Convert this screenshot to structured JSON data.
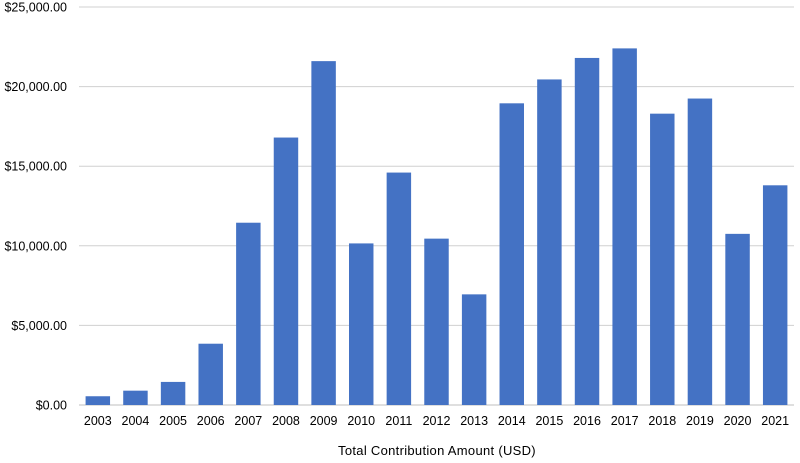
{
  "chart_data": {
    "type": "bar",
    "title": "",
    "xlabel": "Total Contribution Amount (USD)",
    "ylabel": "",
    "categories": [
      "2003",
      "2004",
      "2005",
      "2006",
      "2007",
      "2008",
      "2009",
      "2010",
      "2011",
      "2012",
      "2013",
      "2014",
      "2015",
      "2016",
      "2017",
      "2018",
      "2019",
      "2020",
      "2021"
    ],
    "values": [
      550,
      900,
      1450,
      3850,
      11450,
      16800,
      21600,
      10150,
      14600,
      10450,
      6950,
      18950,
      20450,
      21800,
      22400,
      18300,
      19250,
      10750,
      13800
    ],
    "ylim": [
      0,
      25000
    ],
    "yticks": [
      0,
      5000,
      10000,
      15000,
      20000,
      25000
    ],
    "ytick_labels": [
      "$0.00",
      "$5,000.00",
      "$10,000.00",
      "$15,000.00",
      "$20,000.00",
      "$25,000.00"
    ],
    "grid": true,
    "legend": "none",
    "bar_color": "#4472c4"
  }
}
